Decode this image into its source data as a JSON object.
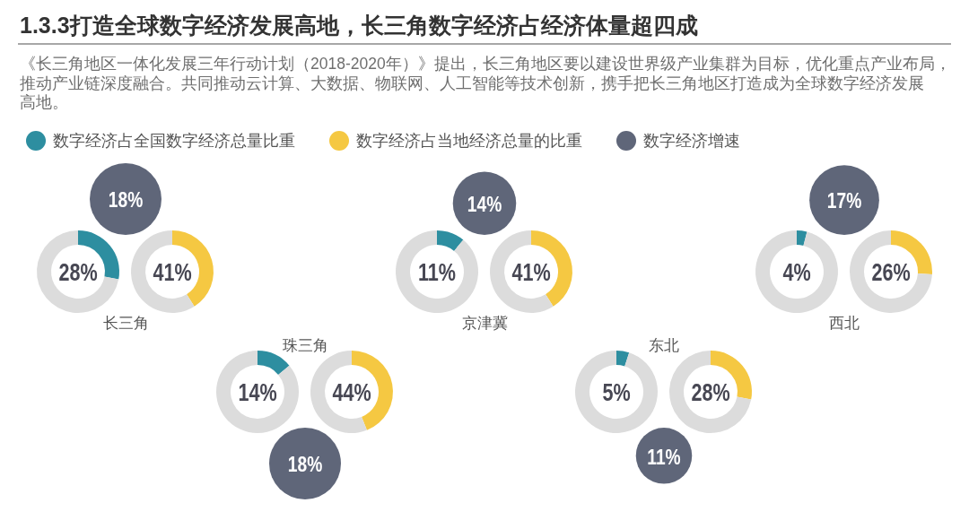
{
  "chart_data": [
    {
      "type": "donut",
      "title": "1.3.3打造全球数字经济发展高地，长三角数字经济占经济体量超四成",
      "subtitle": "《长三角地区一体化发展三年行动计划（2018-2020年）》提出，长三角地区要以建设世界级产业集群为目标，优化重点产业布局，推动产业链深度融合。共同推动云计算、大数据、物联网、人工智能等技术创新，携手把长三角地区打造成为全球数字经济发展高地。",
      "xlabel": "长三角",
      "annotations": [
        "28%",
        "41%"
      ],
      "series": [
        {
          "values": [
            28,
            72
          ],
          "colors": [
            "#2d8ea0",
            "#dcdcdc"
          ]
        },
        {
          "values": [
            41,
            59
          ],
          "colors": [
            "#f5c842",
            "#dcdcdc"
          ]
        },
        {
          "type": "other",
          "color": "#5f6679",
          "values": [
            18
          ],
          "value_labels": [
            "18%"
          ]
        }
      ]
    },
    {
      "type": "donut",
      "legend": "top left",
      "xlabel": "京津冀",
      "annotations": [
        "11%",
        "41%"
      ],
      "series": [
        {
          "name": "数字经济占全国数字经济总量比重",
          "values": [
            11,
            89
          ],
          "colors": [
            "#2d8ea0",
            "#dcdcdc"
          ]
        },
        {
          "name": "数字经济占当地经济总量的比重",
          "values": [
            41,
            59
          ],
          "colors": [
            "#f5c842",
            "#dcdcdc"
          ]
        },
        {
          "name": "数字经济增速",
          "type": "other",
          "color": "#5f6679",
          "values": [
            14
          ],
          "value_labels": [
            "14%"
          ]
        }
      ]
    },
    {
      "type": "donut",
      "xlabel": "西北",
      "annotations": [
        "4%",
        "26%"
      ],
      "series": [
        {
          "values": [
            4,
            96
          ],
          "colors": [
            "#2d8ea0",
            "#dcdcdc"
          ]
        },
        {
          "values": [
            26,
            74
          ],
          "colors": [
            "#f5c842",
            "#dcdcdc"
          ]
        },
        {
          "type": "other",
          "color": "#5f6679",
          "values": [
            17
          ],
          "value_labels": [
            "17%"
          ]
        }
      ]
    },
    {
      "type": "donut",
      "xlabel": "珠三角",
      "annotations": [
        "14%",
        "44%"
      ],
      "series": [
        {
          "values": [
            14,
            86
          ],
          "colors": [
            "#2d8ea0",
            "#dcdcdc"
          ]
        },
        {
          "values": [
            44,
            56
          ],
          "colors": [
            "#f5c842",
            "#dcdcdc"
          ]
        },
        {
          "type": "other",
          "color": "#5f6679",
          "values": [
            18
          ],
          "value_labels": [
            "18%"
          ]
        }
      ]
    },
    {
      "type": "donut",
      "xlabel": "东北",
      "annotations": [
        "5%",
        "28%"
      ],
      "series": [
        {
          "values": [
            5,
            95
          ],
          "colors": [
            "#2d8ea0",
            "#dcdcdc"
          ]
        },
        {
          "values": [
            28,
            72
          ],
          "colors": [
            "#f5c842",
            "#dcdcdc"
          ]
        },
        {
          "type": "other",
          "color": "#5f6679",
          "values": [
            11
          ],
          "value_labels": [
            "11%"
          ]
        }
      ]
    }
  ]
}
